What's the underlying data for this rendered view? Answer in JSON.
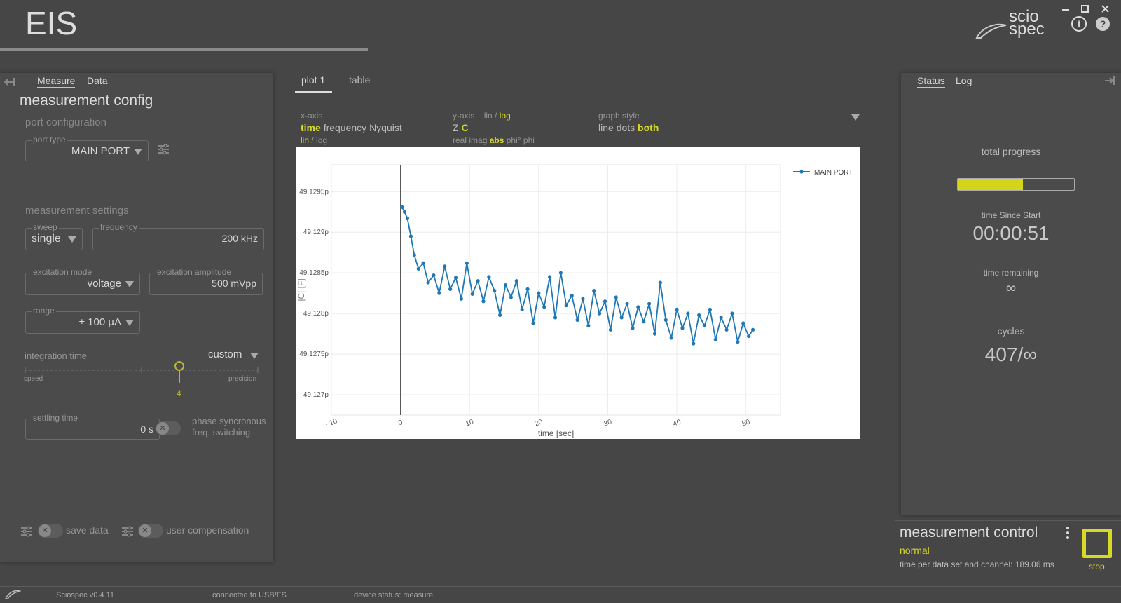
{
  "header": {
    "title": "EIS",
    "logo_top": "scio",
    "logo_bottom": "spec"
  },
  "left_panel": {
    "tabs": [
      "Measure",
      "Data"
    ],
    "title": "measurement config",
    "port_section": "port configuration",
    "port_type": {
      "label": "port type",
      "value": "MAIN PORT"
    },
    "settings_section": "measurement settings",
    "sweep": {
      "label": "sweep",
      "value": "single"
    },
    "frequency": {
      "label": "frequency",
      "value": "200 kHz"
    },
    "excitation_mode": {
      "label": "excitation mode",
      "value": "voltage"
    },
    "excitation_amplitude": {
      "label": "excitation amplitude",
      "value": "500 mVpp"
    },
    "range": {
      "label": "range",
      "value": "± 100 µA"
    },
    "integration_time": {
      "label": "integration time",
      "mode": "custom",
      "min_label": "speed",
      "max_label": "precision",
      "value": "4"
    },
    "settling_time": {
      "label": "settling time",
      "value": "0 s"
    },
    "phase_switch": [
      "phase syncronous",
      "freq. switching"
    ],
    "save_data": "save data",
    "user_compensation": "user compensation"
  },
  "plot_panel": {
    "tabs": [
      "plot 1",
      "table"
    ],
    "x_axis": {
      "label": "x-axis",
      "options": [
        "time",
        "frequency",
        "Nyquist"
      ],
      "scale": [
        "lin",
        "/",
        "log"
      ]
    },
    "y_axis": {
      "label": "y-axis",
      "scale": [
        "lin",
        "/",
        "log"
      ],
      "quantity": [
        "Z",
        "C"
      ],
      "component": [
        "real",
        "imag",
        "abs",
        "phi°",
        "phi"
      ]
    },
    "graph_style": {
      "label": "graph style",
      "options": [
        "line",
        "dots",
        "both"
      ]
    }
  },
  "chart_data": {
    "type": "line",
    "x_label": "time [sec]",
    "y_label": "|C| [F]",
    "legend": "top-right",
    "grid": true,
    "x": [
      0.2,
      0.6,
      1.0,
      1.5,
      2.0,
      2.6,
      3.3,
      4.0,
      4.8,
      5.6,
      6.4,
      7.2,
      8.0,
      8.8,
      9.6,
      10.4,
      11.2,
      12.0,
      12.8,
      13.6,
      14.4,
      15.2,
      16.0,
      16.8,
      17.6,
      18.4,
      19.2,
      20.0,
      20.8,
      21.6,
      22.4,
      23.2,
      24.0,
      24.8,
      25.6,
      26.4,
      27.2,
      28.0,
      28.8,
      29.6,
      30.4,
      31.2,
      32.0,
      32.8,
      33.6,
      34.4,
      35.2,
      36.0,
      36.8,
      37.6,
      38.4,
      39.2,
      40.0,
      40.8,
      41.6,
      42.4,
      43.2,
      44.0,
      44.8,
      45.6,
      46.4,
      47.2,
      48.0,
      48.8,
      49.6,
      50.4,
      51.0
    ],
    "series": [
      {
        "name": "MAIN PORT",
        "color": "#1f77b4",
        "values": [
          4.912931e-11,
          4.912925e-11,
          4.912917e-11,
          4.912895e-11,
          4.912872e-11,
          4.912855e-11,
          4.912862e-11,
          4.912838e-11,
          4.912847e-11,
          4.912825e-11,
          4.912858e-11,
          4.91283e-11,
          4.912844e-11,
          4.912818e-11,
          4.912862e-11,
          4.912824e-11,
          4.91284e-11,
          4.912815e-11,
          4.912845e-11,
          4.912828e-11,
          4.912798e-11,
          4.912835e-11,
          4.91282e-11,
          4.91284e-11,
          4.912805e-11,
          4.91283e-11,
          4.912788e-11,
          4.912825e-11,
          4.912808e-11,
          4.912845e-11,
          4.912795e-11,
          4.91285e-11,
          4.91281e-11,
          4.912822e-11,
          4.912792e-11,
          4.912818e-11,
          4.912785e-11,
          4.912828e-11,
          4.9128e-11,
          4.912815e-11,
          4.91278e-11,
          4.91282e-11,
          4.912795e-11,
          4.912812e-11,
          4.912782e-11,
          4.912808e-11,
          4.91279e-11,
          4.912812e-11,
          4.912775e-11,
          4.912838e-11,
          4.912792e-11,
          4.91277e-11,
          4.912805e-11,
          4.912782e-11,
          4.9128e-11,
          4.912763e-11,
          4.912798e-11,
          4.912785e-11,
          4.912805e-11,
          4.912768e-11,
          4.912795e-11,
          4.91278e-11,
          4.9128e-11,
          4.912765e-11,
          4.912788e-11,
          4.912772e-11,
          4.91278e-11
        ]
      }
    ],
    "xlim": [
      -10,
      55
    ],
    "xticks": [
      {
        "value": -10,
        "label": "−10"
      },
      0,
      10,
      20,
      30,
      40,
      50
    ],
    "ylim": [
      4.912675e-11,
      4.912983e-11
    ],
    "yticks": [
      {
        "value": 4.9127e-11,
        "label": "49.127p"
      },
      {
        "value": 4.91275e-11,
        "label": "49.1275p"
      },
      {
        "value": 4.9128e-11,
        "label": "49.128p"
      },
      {
        "value": 4.91285e-11,
        "label": "49.1285p"
      },
      {
        "value": 4.9129e-11,
        "label": "49.129p"
      },
      {
        "value": 4.91295e-11,
        "label": "49.1295p"
      }
    ]
  },
  "status_panel": {
    "tabs": [
      "Status",
      "Log"
    ],
    "progress_label": "total progress",
    "progress": 56,
    "elapsed_label": "time Since Start",
    "elapsed": "00:00:51",
    "remaining_label": "time remaining",
    "remaining": "∞",
    "cycles_label": "cycles",
    "cycles": "407/∞"
  },
  "measurement_control": {
    "title": "measurement control",
    "mode": "normal",
    "info": "time per data set and channel: 189.06 ms",
    "stop": "stop"
  },
  "footer": {
    "version": "Sciospec v0.4.11",
    "connection": "connected to USB/FS",
    "device_status": "device status: measure"
  }
}
